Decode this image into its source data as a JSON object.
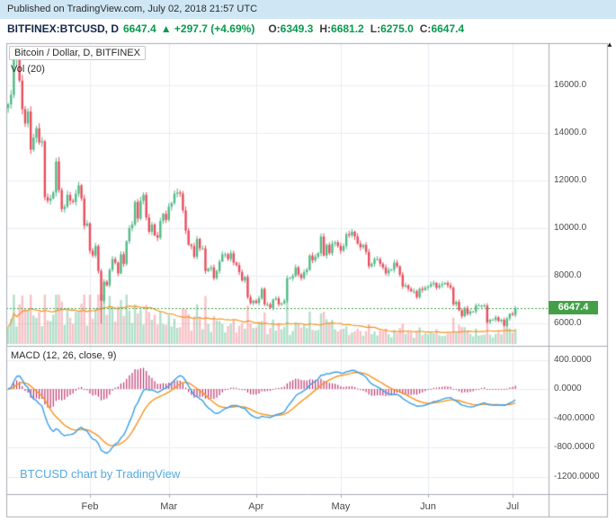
{
  "published_bar": {
    "text": "Published on TradingView.com, July 02, 2018 21:57 UTC"
  },
  "symbol_bar": {
    "symbol_interval": "BITFINEX:BTCUSD, D",
    "price": "6647.4",
    "change": "▲ +297.7 (+4.69%)",
    "ohlc": [
      {
        "label": "O:",
        "value": "6349.3"
      },
      {
        "label": "H:",
        "value": "6681.2"
      },
      {
        "label": "L:",
        "value": "6275.0"
      },
      {
        "label": "C:",
        "value": "6647.4"
      }
    ]
  },
  "main_pane": {
    "legend_title": "Bitcoin / Dollar, D, BITFINEX",
    "legend_vol": "Vol (20)",
    "price_axis_ticks": [
      "16000.0",
      "14000.0",
      "12000.0",
      "10000.0",
      "8000.0",
      "6000.0"
    ],
    "last_price_label": "6647.4"
  },
  "macd_pane": {
    "label": "MACD (12, 26, close, 9)",
    "axis_ticks": [
      "400.0000",
      "0.0000",
      "-400.0000",
      "-800.0000",
      "-1200.0000"
    ]
  },
  "time_axis": {
    "labels": [
      "Feb",
      "Mar",
      "Apr",
      "May",
      "Jun",
      "Jul"
    ]
  },
  "watermark": {
    "text": "BTCUSD chart by TradingView"
  },
  "scroll_arrow": {
    "glyph": "▲"
  },
  "colors": {
    "published_bar_bg": "#cfe7f5",
    "published_bar_text": "#2b2b2b",
    "symbol_text": "#13294b",
    "value_green": "#089950",
    "up": "#53b987",
    "down": "#eb4d5c",
    "vol_up": "rgba(83,185,135,0.45)",
    "vol_down": "rgba(235,77,92,0.35)",
    "vol_ma": "#f7941e",
    "macd_line": "#3aa0e8",
    "macd_signal": "#f7941e",
    "macd_hist": "#c0356e",
    "grid": "#e9edf2",
    "border": "#a8adb3",
    "axis_text": "#4a4a4a",
    "last_price_line": "#43a047",
    "badge_bg": "#43a047",
    "badge_text": "#ffffff",
    "watermark": "#55ace0",
    "legend_text": "#2a2a2a"
  },
  "chart_data": {
    "type": "candlestick",
    "title": "Bitcoin / Dollar, D, BITFINEX",
    "symbol": "BITFINEX:BTCUSD",
    "interval": "D",
    "legend_position": "top-left",
    "grid": true,
    "price_axis": {
      "ticks": [
        16000,
        14000,
        12000,
        10000,
        8000,
        6000
      ],
      "visible_range": [
        5100,
        17800
      ]
    },
    "macd_axis": {
      "ticks": [
        400,
        0,
        -400,
        -800,
        -1200
      ],
      "visible_range": [
        -1415,
        590
      ]
    },
    "last": {
      "price": 6647.4,
      "open": 6349.3,
      "high": 6681.2,
      "low": 6275.0,
      "close": 6647.4,
      "change": 297.7,
      "change_pct": 4.69
    },
    "x_month_labels": [
      "Feb",
      "Mar",
      "Apr",
      "May",
      "Jun",
      "Jul"
    ],
    "month_label_indices": [
      29,
      57,
      88,
      118,
      149,
      179
    ],
    "series": [
      {
        "name": "close",
        "values": [
          15200,
          15600,
          17100,
          17150,
          16200,
          15000,
          14400,
          14900,
          13300,
          13800,
          14200,
          13600,
          13650,
          11300,
          11150,
          11250,
          11500,
          12800,
          11600,
          10800,
          10900,
          11400,
          11150,
          11100,
          11450,
          11800,
          11250,
          10100,
          10200,
          9050,
          8850,
          9250,
          8200,
          6950,
          7750,
          7600,
          8250,
          8700,
          8550,
          8100,
          8900,
          8500,
          9450,
          10000,
          10150,
          11100,
          10400,
          11150,
          11400,
          10450,
          9850,
          10150,
          9700,
          9600,
          10300,
          10600,
          10350,
          10900,
          11050,
          11450,
          11500,
          11450,
          10750,
          9900,
          9300,
          9250,
          8800,
          9550,
          9150,
          9150,
          8200,
          8300,
          8350,
          7900,
          8200,
          8600,
          8900,
          8900,
          8700,
          8950,
          8550,
          8450,
          8150,
          7800,
          7950,
          7100,
          6850,
          6950,
          6850,
          7050,
          7450,
          6800,
          6800,
          6650,
          7000,
          7050,
          6800,
          6850,
          6950,
          7900,
          7900,
          8000,
          8350,
          8050,
          7900,
          8150,
          8250,
          8850,
          8650,
          8800,
          8950,
          9650,
          8850,
          9300,
          8950,
          9350,
          9400,
          9250,
          9050,
          9250,
          9750,
          9700,
          9850,
          9650,
          9350,
          9200,
          9300,
          9000,
          8400,
          8500,
          8700,
          8700,
          8500,
          8350,
          8100,
          8250,
          8250,
          8550,
          8400,
          8050,
          7550,
          7600,
          7450,
          7350,
          7350,
          7100,
          7450,
          7400,
          7500,
          7550,
          7650,
          7700,
          7500,
          7600,
          7650,
          7700,
          7600,
          7500,
          6800,
          6900,
          6550,
          6300,
          6650,
          6400,
          6500,
          6500,
          6750,
          6750,
          6750,
          6750,
          6050,
          6150,
          6150,
          6250,
          6100,
          6150,
          5900,
          6200,
          6400,
          6350,
          6647.4
        ]
      }
    ],
    "wick_overrides": [
      {
        "index": 33,
        "low": 6000
      }
    ],
    "indicators": [
      {
        "type": "volume_ma",
        "label": "Vol (20)",
        "period": 20
      },
      {
        "type": "macd",
        "label": "MACD (12, 26, close, 9)",
        "params": [
          12,
          26,
          9
        ]
      }
    ]
  }
}
